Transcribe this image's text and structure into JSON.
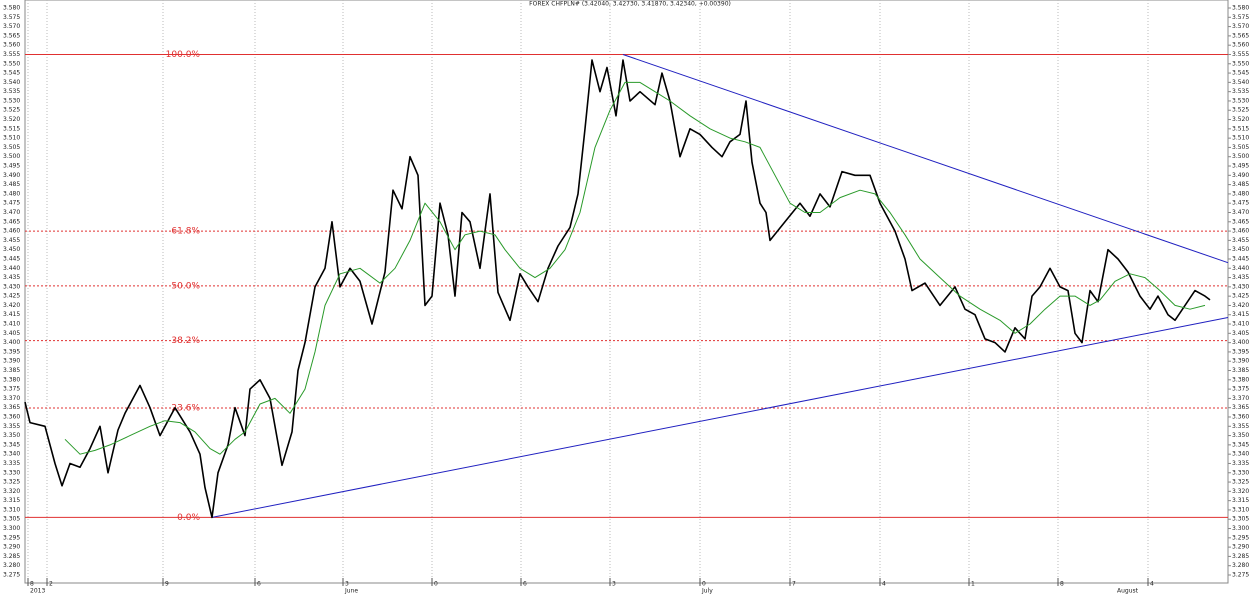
{
  "chart_data": {
    "type": "line",
    "title": "FOREX CHFPLN# (3.42040, 3.42730, 3.41870, 3.42340, +0.00390)",
    "xlim": [
      0,
      1203
    ],
    "ylim": [
      3.275,
      3.58
    ],
    "yticks": [
      {
        "value": 3.275,
        "label": "3.275"
      },
      {
        "value": 3.28,
        "label": "3.280"
      },
      {
        "value": 3.285,
        "label": "3.285"
      },
      {
        "value": 3.29,
        "label": "3.290"
      },
      {
        "value": 3.295,
        "label": "3.295"
      },
      {
        "value": 3.3,
        "label": "3.300"
      },
      {
        "value": 3.305,
        "label": "3.305"
      },
      {
        "value": 3.31,
        "label": "3.310"
      },
      {
        "value": 3.315,
        "label": "3.315"
      },
      {
        "value": 3.32,
        "label": "3.320"
      },
      {
        "value": 3.325,
        "label": "3.325"
      },
      {
        "value": 3.33,
        "label": "3.330"
      },
      {
        "value": 3.335,
        "label": "3.335"
      },
      {
        "value": 3.34,
        "label": "3.340"
      },
      {
        "value": 3.345,
        "label": "3.345"
      },
      {
        "value": 3.35,
        "label": "3.350"
      },
      {
        "value": 3.355,
        "label": "3.355"
      },
      {
        "value": 3.36,
        "label": "3.360"
      },
      {
        "value": 3.365,
        "label": "3.365"
      },
      {
        "value": 3.37,
        "label": "3.370"
      },
      {
        "value": 3.375,
        "label": "3.375"
      },
      {
        "value": 3.38,
        "label": "3.380"
      },
      {
        "value": 3.385,
        "label": "3.385"
      },
      {
        "value": 3.39,
        "label": "3.390"
      },
      {
        "value": 3.395,
        "label": "3.395"
      },
      {
        "value": 3.4,
        "label": "3.400"
      },
      {
        "value": 3.405,
        "label": "3.405"
      },
      {
        "value": 3.41,
        "label": "3.410"
      },
      {
        "value": 3.415,
        "label": "3.415"
      },
      {
        "value": 3.42,
        "label": "3.420"
      },
      {
        "value": 3.425,
        "label": "3.425"
      },
      {
        "value": 3.43,
        "label": "3.430"
      },
      {
        "value": 3.435,
        "label": "3.435"
      },
      {
        "value": 3.44,
        "label": "3.440"
      },
      {
        "value": 3.445,
        "label": "3.445"
      },
      {
        "value": 3.45,
        "label": "3.450"
      },
      {
        "value": 3.455,
        "label": "3.455"
      },
      {
        "value": 3.46,
        "label": "3.460"
      },
      {
        "value": 3.465,
        "label": "3.465"
      },
      {
        "value": 3.47,
        "label": "3.470"
      },
      {
        "value": 3.475,
        "label": "3.475"
      },
      {
        "value": 3.48,
        "label": "3.480"
      },
      {
        "value": 3.485,
        "label": "3.485"
      },
      {
        "value": 3.49,
        "label": "3.490"
      },
      {
        "value": 3.495,
        "label": "3.495"
      },
      {
        "value": 3.5,
        "label": "3.500"
      },
      {
        "value": 3.505,
        "label": "3.505"
      },
      {
        "value": 3.51,
        "label": "3.510"
      },
      {
        "value": 3.515,
        "label": "3.515"
      },
      {
        "value": 3.52,
        "label": "3.520"
      },
      {
        "value": 3.525,
        "label": "3.525"
      },
      {
        "value": 3.53,
        "label": "3.530"
      },
      {
        "value": 3.535,
        "label": "3.535"
      },
      {
        "value": 3.54,
        "label": "3.540"
      },
      {
        "value": 3.545,
        "label": "3.545"
      },
      {
        "value": 3.55,
        "label": "3.550"
      },
      {
        "value": 3.555,
        "label": "3.555"
      },
      {
        "value": 3.56,
        "label": "3.560"
      },
      {
        "value": 3.565,
        "label": "3.565"
      },
      {
        "value": 3.57,
        "label": "3.570"
      },
      {
        "value": 3.575,
        "label": "3.575"
      },
      {
        "value": 3.58,
        "label": "3.580"
      }
    ],
    "xticks": [
      {
        "value": 3,
        "label": "8"
      },
      {
        "value": 22,
        "label": "2"
      },
      {
        "value": 138,
        "label": "9"
      },
      {
        "value": 230,
        "label": "6"
      },
      {
        "value": 318,
        "label": "3"
      },
      {
        "value": 407,
        "label": "0"
      },
      {
        "value": 496,
        "label": "6"
      },
      {
        "value": 585,
        "label": "3"
      },
      {
        "value": 675,
        "label": "0"
      },
      {
        "value": 765,
        "label": "7"
      },
      {
        "value": 855,
        "label": "4"
      },
      {
        "value": 944,
        "label": "1"
      },
      {
        "value": 1033,
        "label": "8"
      },
      {
        "value": 1123,
        "label": "4"
      }
    ],
    "months": [
      {
        "value": 3,
        "label": "2013"
      },
      {
        "value": 318,
        "label": "June"
      },
      {
        "value": 675,
        "label": "July"
      },
      {
        "value": 1090,
        "label": "August"
      }
    ],
    "levels": [
      {
        "label": "100.0%",
        "value": 3.555
      },
      {
        "label": "61.8%",
        "value": 3.46
      },
      {
        "label": "50.0%",
        "value": 3.4305
      },
      {
        "label": "38.2%",
        "value": 3.4011
      },
      {
        "label": "23.6%",
        "value": 3.3648
      },
      {
        "label": "0.0%",
        "value": 3.306
      }
    ],
    "level_color": "#e03030",
    "trendlines": [
      {
        "x": [
          187,
          1203
        ],
        "y": [
          3.306,
          3.4135
        ],
        "color": "#2020c0"
      },
      {
        "x": [
          598,
          1203
        ],
        "y": [
          3.555,
          3.443
        ],
        "color": "#2020c0"
      }
    ],
    "series": [
      {
        "color": "#000000",
        "x": [
          0,
          5,
          20,
          30,
          37,
          45,
          55,
          65,
          75,
          83,
          93,
          100,
          115,
          125,
          135,
          150,
          165,
          175,
          180,
          187,
          193,
          203,
          210,
          220,
          225,
          235,
          245,
          257,
          267,
          273,
          280,
          290,
          300,
          307,
          315,
          325,
          335,
          347,
          360,
          368,
          377,
          385,
          393,
          400,
          407,
          415,
          423,
          430,
          437,
          445,
          455,
          465,
          473,
          485,
          495,
          503,
          513,
          523,
          533,
          545,
          553,
          560,
          567,
          575,
          582,
          591,
          598,
          605,
          615,
          630,
          637,
          645,
          655,
          665,
          675,
          687,
          697,
          705,
          715,
          721,
          727,
          735,
          741,
          745,
          760,
          775,
          785,
          795,
          805,
          817,
          830,
          845,
          855,
          870,
          880,
          887,
          900,
          915,
          930,
          940,
          950,
          960,
          970,
          980,
          990,
          1000,
          1007,
          1015,
          1025,
          1035,
          1043,
          1050,
          1057,
          1065,
          1073,
          1083,
          1093,
          1103,
          1115,
          1125,
          1133,
          1143,
          1150,
          1160,
          1170,
          1180,
          1185
        ],
        "values": [
          3.368,
          3.357,
          3.355,
          3.335,
          3.323,
          3.335,
          3.333,
          3.343,
          3.355,
          3.33,
          3.353,
          3.362,
          3.377,
          3.365,
          3.35,
          3.365,
          3.352,
          3.34,
          3.322,
          3.306,
          3.33,
          3.345,
          3.365,
          3.35,
          3.375,
          3.38,
          3.37,
          3.334,
          3.352,
          3.385,
          3.4,
          3.43,
          3.44,
          3.465,
          3.43,
          3.44,
          3.433,
          3.41,
          3.438,
          3.482,
          3.472,
          3.5,
          3.49,
          3.42,
          3.425,
          3.475,
          3.458,
          3.425,
          3.47,
          3.465,
          3.44,
          3.48,
          3.427,
          3.412,
          3.437,
          3.43,
          3.422,
          3.44,
          3.452,
          3.462,
          3.48,
          3.515,
          3.552,
          3.535,
          3.548,
          3.522,
          3.552,
          3.53,
          3.535,
          3.528,
          3.545,
          3.53,
          3.5,
          3.515,
          3.512,
          3.505,
          3.5,
          3.508,
          3.512,
          3.53,
          3.497,
          3.475,
          3.47,
          3.455,
          3.465,
          3.475,
          3.468,
          3.48,
          3.473,
          3.492,
          3.49,
          3.49,
          3.475,
          3.46,
          3.445,
          3.428,
          3.432,
          3.42,
          3.43,
          3.418,
          3.415,
          3.402,
          3.4,
          3.395,
          3.408,
          3.402,
          3.425,
          3.43,
          3.44,
          3.43,
          3.428,
          3.405,
          3.4,
          3.428,
          3.422,
          3.45,
          3.445,
          3.438,
          3.425,
          3.418,
          3.425,
          3.415,
          3.412,
          3.42,
          3.428,
          3.425,
          3.423
        ]
      },
      {
        "color": "#2a9a2a",
        "x": [
          40,
          55,
          70,
          85,
          105,
          125,
          140,
          155,
          170,
          185,
          195,
          210,
          220,
          235,
          250,
          265,
          280,
          290,
          300,
          315,
          335,
          355,
          370,
          385,
          400,
          415,
          430,
          440,
          455,
          470,
          480,
          495,
          510,
          525,
          540,
          555,
          570,
          585,
          600,
          615,
          630,
          645,
          665,
          685,
          705,
          720,
          735,
          750,
          765,
          780,
          795,
          815,
          835,
          850,
          865,
          880,
          895,
          915,
          935,
          955,
          975,
          990,
          1005,
          1020,
          1035,
          1050,
          1065,
          1075,
          1090,
          1105,
          1120,
          1135,
          1150,
          1165,
          1180
        ],
        "values": [
          3.348,
          3.34,
          3.342,
          3.345,
          3.35,
          3.355,
          3.358,
          3.357,
          3.352,
          3.343,
          3.34,
          3.348,
          3.352,
          3.367,
          3.37,
          3.362,
          3.375,
          3.395,
          3.42,
          3.437,
          3.44,
          3.432,
          3.44,
          3.455,
          3.475,
          3.465,
          3.45,
          3.458,
          3.46,
          3.458,
          3.45,
          3.44,
          3.435,
          3.44,
          3.45,
          3.47,
          3.505,
          3.525,
          3.54,
          3.54,
          3.535,
          3.53,
          3.522,
          3.515,
          3.51,
          3.508,
          3.505,
          3.49,
          3.475,
          3.47,
          3.47,
          3.478,
          3.482,
          3.48,
          3.47,
          3.458,
          3.445,
          3.435,
          3.425,
          3.418,
          3.412,
          3.405,
          3.41,
          3.418,
          3.425,
          3.425,
          3.42,
          3.423,
          3.433,
          3.437,
          3.435,
          3.428,
          3.42,
          3.418,
          3.42
        ]
      }
    ]
  }
}
